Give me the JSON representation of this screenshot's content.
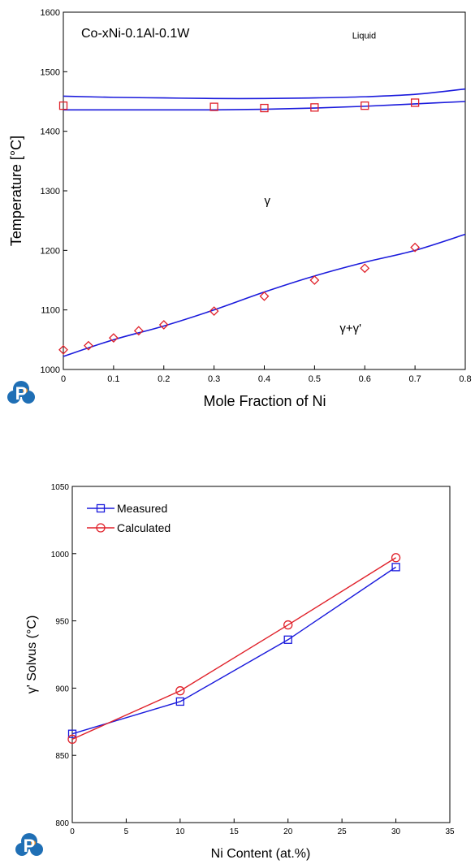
{
  "logo": {
    "letter": "P",
    "colors": {
      "blue": "#1f6fb5",
      "orange": "#f08a1d"
    }
  },
  "chart_data": [
    {
      "type": "line",
      "title": "Co-xNi-0.1Al-0.1W",
      "xlabel": "Mole Fraction of Ni",
      "ylabel": "Temperature [°C]",
      "xlim": [
        0,
        0.8
      ],
      "ylim": [
        1000,
        1600
      ],
      "xticks": [
        0,
        0.1,
        0.2,
        0.3,
        0.4,
        0.5,
        0.6,
        0.7,
        0.8
      ],
      "xtick_labels": [
        "0",
        "0.1",
        "0.2",
        "0.3",
        "0.4",
        "0.5",
        "0.6",
        "0.7",
        "0.8"
      ],
      "yticks": [
        1000,
        1100,
        1200,
        1300,
        1400,
        1500,
        1600
      ],
      "ytick_labels": [
        "1000",
        "1100",
        "1200",
        "1300",
        "1400",
        "1500",
        "1600"
      ],
      "grid": false,
      "legend": "none",
      "region_labels": [
        {
          "text": "Liquid",
          "x": 0.575,
          "y": 1556
        },
        {
          "text": "γ",
          "x": 0.4,
          "y": 1277
        },
        {
          "text": "γ+γ'",
          "x": 0.55,
          "y": 1063
        }
      ],
      "calculated_lines": [
        {
          "name": "liquidus",
          "color": "#1a1adc",
          "x": [
            0,
            0.1,
            0.2,
            0.3,
            0.4,
            0.5,
            0.6,
            0.7,
            0.8
          ],
          "y": [
            1459,
            1457,
            1456,
            1455,
            1455,
            1456,
            1458,
            1462,
            1471
          ]
        },
        {
          "name": "solidus",
          "color": "#1a1adc",
          "x": [
            0,
            0.1,
            0.2,
            0.3,
            0.4,
            0.5,
            0.6,
            0.7,
            0.8
          ],
          "y": [
            1436,
            1436,
            1436,
            1436,
            1437,
            1439,
            1442,
            1446,
            1450
          ]
        },
        {
          "name": "gamma-prime-solvus",
          "color": "#1a1adc",
          "x": [
            0,
            0.1,
            0.2,
            0.3,
            0.4,
            0.5,
            0.6,
            0.7,
            0.8
          ],
          "y": [
            1022,
            1050,
            1073,
            1100,
            1130,
            1157,
            1180,
            1200,
            1227
          ]
        }
      ],
      "measured_points": [
        {
          "marker": "square",
          "color": "#e0212a",
          "x": [
            0,
            0.3,
            0.4,
            0.5,
            0.6,
            0.7
          ],
          "y": [
            1443,
            1441,
            1439,
            1440,
            1443,
            1448
          ]
        },
        {
          "marker": "diamond",
          "color": "#e0212a",
          "x": [
            0,
            0.05,
            0.1,
            0.15,
            0.2,
            0.3,
            0.4,
            0.5,
            0.6,
            0.7
          ],
          "y": [
            1033,
            1040,
            1053,
            1065,
            1075,
            1098,
            1123,
            1150,
            1170,
            1205
          ]
        }
      ]
    },
    {
      "type": "line",
      "title": "",
      "xlabel": "Ni Content (at.%)",
      "ylabel": "γ' Solvus (°C)",
      "xlim": [
        0,
        35
      ],
      "ylim": [
        800,
        1050
      ],
      "xticks": [
        0,
        5,
        10,
        15,
        20,
        25,
        30,
        35
      ],
      "xtick_labels": [
        "0",
        "5",
        "10",
        "15",
        "20",
        "25",
        "30",
        "35"
      ],
      "yticks": [
        800,
        850,
        900,
        950,
        1000,
        1050
      ],
      "ytick_labels": [
        "800",
        "850",
        "900",
        "950",
        "1000",
        "1050"
      ],
      "grid": false,
      "legend": "top-left",
      "series": [
        {
          "name": "Measured",
          "marker": "square",
          "color": "#1a1adc",
          "x": [
            0,
            10,
            20,
            30
          ],
          "y": [
            866,
            890,
            936,
            990
          ]
        },
        {
          "name": "Calculated",
          "marker": "circle",
          "color": "#e0212a",
          "x": [
            0,
            10,
            20,
            30
          ],
          "y": [
            862,
            898,
            947,
            997
          ]
        }
      ]
    }
  ]
}
